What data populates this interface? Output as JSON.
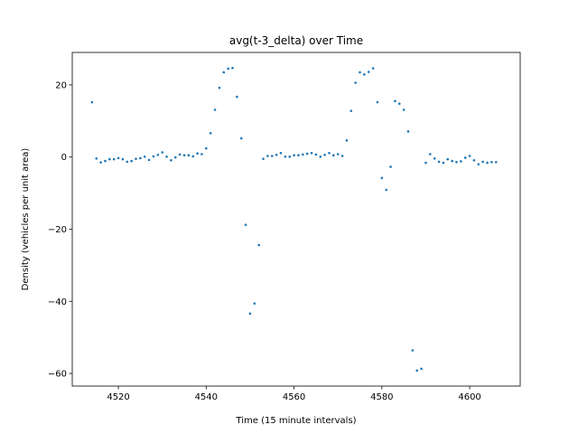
{
  "chart_data": {
    "type": "scatter",
    "title": "avg(t-3_delta) over Time",
    "xlabel": "Time (15 minute intervals)",
    "ylabel": "Density (vehicles per unit area)",
    "xlim": [
      4509.5,
      4611.5
    ],
    "ylim": [
      -63.5,
      29
    ],
    "xticks": [
      4520,
      4540,
      4560,
      4580,
      4600
    ],
    "yticks": [
      -60,
      -40,
      -20,
      0,
      20
    ],
    "grid": false,
    "color": "#1f77b4",
    "points": [
      [
        4514,
        15.2
      ],
      [
        4515,
        -0.4
      ],
      [
        4516,
        -1.5
      ],
      [
        4517,
        -1.1
      ],
      [
        4518,
        -0.6
      ],
      [
        4519,
        -0.6
      ],
      [
        4520,
        -0.3
      ],
      [
        4521,
        -0.6
      ],
      [
        4522,
        -1.3
      ],
      [
        4523,
        -1.1
      ],
      [
        4524,
        -0.5
      ],
      [
        4525,
        -0.3
      ],
      [
        4526,
        0.1
      ],
      [
        4527,
        -0.8
      ],
      [
        4528,
        0.2
      ],
      [
        4529,
        0.6
      ],
      [
        4530,
        1.3
      ],
      [
        4531,
        0.1
      ],
      [
        4532,
        -0.9
      ],
      [
        4533,
        -0.1
      ],
      [
        4534,
        0.7
      ],
      [
        4535,
        0.5
      ],
      [
        4536,
        0.5
      ],
      [
        4537,
        0.2
      ],
      [
        4538,
        1.0
      ],
      [
        4539,
        0.8
      ],
      [
        4540,
        2.4
      ],
      [
        4541,
        6.6
      ],
      [
        4542,
        13.1
      ],
      [
        4543,
        19.2
      ],
      [
        4544,
        23.5
      ],
      [
        4545,
        24.5
      ],
      [
        4546,
        24.7
      ],
      [
        4547,
        16.7
      ],
      [
        4548,
        5.2
      ],
      [
        4549,
        -18.8
      ],
      [
        4550,
        -43.4
      ],
      [
        4551,
        -40.6
      ],
      [
        4552,
        -24.4
      ],
      [
        4553,
        -0.5
      ],
      [
        4554,
        0.3
      ],
      [
        4555,
        0.3
      ],
      [
        4556,
        0.6
      ],
      [
        4557,
        1.1
      ],
      [
        4558,
        0.1
      ],
      [
        4559,
        0.1
      ],
      [
        4560,
        0.5
      ],
      [
        4561,
        0.5
      ],
      [
        4562,
        0.7
      ],
      [
        4563,
        0.9
      ],
      [
        4564,
        1.1
      ],
      [
        4565,
        0.7
      ],
      [
        4566,
        0.1
      ],
      [
        4567,
        0.6
      ],
      [
        4568,
        1.1
      ],
      [
        4569,
        0.5
      ],
      [
        4570,
        0.8
      ],
      [
        4571,
        0.3
      ],
      [
        4572,
        4.6
      ],
      [
        4573,
        12.8
      ],
      [
        4574,
        20.6
      ],
      [
        4575,
        23.5
      ],
      [
        4576,
        22.9
      ],
      [
        4577,
        23.6
      ],
      [
        4578,
        24.6
      ],
      [
        4579,
        15.2
      ],
      [
        4580,
        -5.8
      ],
      [
        4581,
        -9.1
      ],
      [
        4582,
        -2.7
      ],
      [
        4583,
        15.5
      ],
      [
        4584,
        14.8
      ],
      [
        4585,
        13.1
      ],
      [
        4586,
        7.1
      ],
      [
        4587,
        -53.6
      ],
      [
        4588,
        -59.2
      ],
      [
        4589,
        -58.7
      ],
      [
        4590,
        -1.6
      ],
      [
        4591,
        0.8
      ],
      [
        4592,
        -0.4
      ],
      [
        4593,
        -1.3
      ],
      [
        4594,
        -1.6
      ],
      [
        4595,
        -0.6
      ],
      [
        4596,
        -1.1
      ],
      [
        4597,
        -1.4
      ],
      [
        4598,
        -1.2
      ],
      [
        4599,
        -0.2
      ],
      [
        4600,
        0.3
      ],
      [
        4601,
        -0.9
      ],
      [
        4602,
        -2.0
      ],
      [
        4603,
        -1.3
      ],
      [
        4604,
        -1.6
      ],
      [
        4605,
        -1.4
      ],
      [
        4606,
        -1.4
      ]
    ]
  }
}
